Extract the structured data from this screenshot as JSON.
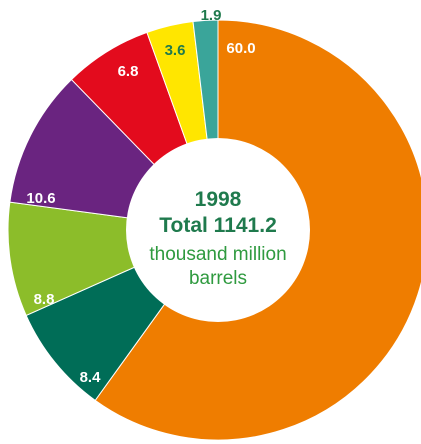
{
  "chart_data": {
    "type": "pie",
    "center": {
      "year": "1998",
      "total": "Total 1141.2",
      "unit_line1": "thousand million",
      "unit_line2": "barrels"
    },
    "slices": [
      {
        "value": 60.0,
        "label": "60.0",
        "color": "#ef7d00",
        "label_color": "#ffffff"
      },
      {
        "value": 8.4,
        "label": "8.4",
        "color": "#006d57",
        "label_color": "#ffffff"
      },
      {
        "value": 8.8,
        "label": "8.8",
        "color": "#8cbd2a",
        "label_color": "#ffffff"
      },
      {
        "value": 10.6,
        "label": "10.6",
        "color": "#6a2480",
        "label_color": "#ffffff"
      },
      {
        "value": 6.8,
        "label": "6.8",
        "color": "#e30b1d",
        "label_color": "#ffffff"
      },
      {
        "value": 3.6,
        "label": "3.6",
        "color": "#ffe600",
        "label_color": "#1f7a4d"
      },
      {
        "value": 1.9,
        "label": "1.9",
        "color": "#3aa59a",
        "label_color": "#1f7a4d"
      }
    ],
    "colors": {
      "center_year": "#1f7a4d",
      "center_total": "#1f7a4d",
      "center_unit": "#2f9a3f"
    }
  }
}
